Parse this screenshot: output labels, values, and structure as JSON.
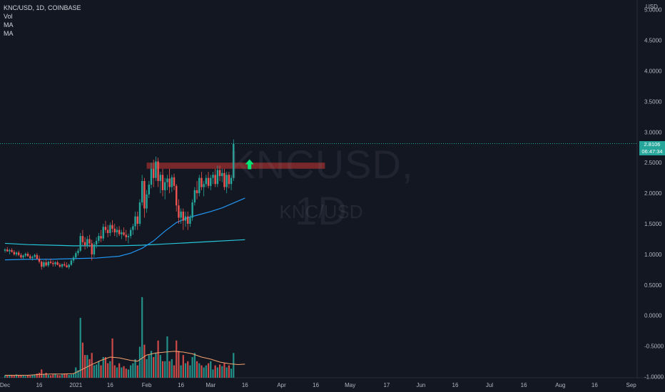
{
  "legend": {
    "symbol": "KNC/USD, 1D, COINBASE",
    "vol": "Vol",
    "ma1": "MA",
    "ma2": "MA"
  },
  "watermark": {
    "big": "KNCUSD, 1D",
    "small": "KNC/USD"
  },
  "price_tag": {
    "price": "2.8106",
    "countdown": "06:47:34"
  },
  "colors": {
    "background": "#131722",
    "up": "#26a69a",
    "down": "#ef5350",
    "ma_fast": "#2196f3",
    "ma_slow": "#26c6da",
    "vol_ma": "#f5a26f",
    "zone": "#8b2c2c",
    "arrow": "#00e676"
  },
  "chart_data": {
    "type": "candlestick",
    "y_axis": {
      "unit": "USD",
      "ticks": [
        "5.0000",
        "4.5000",
        "4.0000",
        "3.5000",
        "3.0000",
        "2.5000",
        "2.0000",
        "1.5000",
        "1.0000",
        "0.5000",
        "0.0000",
        "-0.5000",
        "-1.0000"
      ],
      "range": [
        -1.0,
        5.2
      ]
    },
    "x_axis": {
      "ticks": [
        "Dec",
        "16",
        "2021",
        "16",
        "Feb",
        "16",
        "Mar",
        "16",
        "Apr",
        "16",
        "May",
        "17",
        "Jun",
        "16",
        "Jul",
        "16",
        "Aug",
        "16",
        "Sep"
      ],
      "tick_day_index": [
        0,
        15,
        31,
        46,
        62,
        77,
        90,
        105,
        121,
        136,
        151,
        167,
        182,
        197,
        212,
        227,
        243,
        258,
        274
      ]
    },
    "last_price": 2.8106,
    "resistance_zone": {
      "low": 2.4,
      "high": 2.5,
      "start_day": 62,
      "end_day": 140
    },
    "signal": {
      "type": "up-arrow",
      "day": 107,
      "price": 2.45
    },
    "ohlc": [
      [
        1.06,
        1.1,
        1.03,
        1.08
      ],
      [
        1.08,
        1.12,
        1.04,
        1.05
      ],
      [
        1.05,
        1.09,
        1.0,
        1.07
      ],
      [
        1.07,
        1.1,
        1.03,
        1.04
      ],
      [
        1.04,
        1.07,
        0.98,
        1.0
      ],
      [
        1.0,
        1.05,
        0.97,
        1.03
      ],
      [
        1.03,
        1.06,
        0.97,
        0.99
      ],
      [
        0.99,
        1.02,
        0.93,
        0.95
      ],
      [
        0.95,
        1.0,
        0.92,
        0.98
      ],
      [
        0.98,
        1.03,
        0.95,
        1.01
      ],
      [
        1.01,
        1.04,
        0.96,
        0.97
      ],
      [
        0.97,
        1.0,
        0.92,
        0.94
      ],
      [
        0.94,
        0.98,
        0.9,
        0.96
      ],
      [
        0.96,
        1.01,
        0.94,
        0.99
      ],
      [
        0.99,
        1.02,
        0.92,
        0.93
      ],
      [
        0.93,
        0.98,
        0.85,
        0.88
      ],
      [
        0.88,
        0.9,
        0.75,
        0.8
      ],
      [
        0.8,
        0.9,
        0.78,
        0.87
      ],
      [
        0.87,
        0.92,
        0.8,
        0.82
      ],
      [
        0.82,
        0.9,
        0.79,
        0.88
      ],
      [
        0.88,
        0.93,
        0.84,
        0.86
      ],
      [
        0.86,
        0.9,
        0.8,
        0.84
      ],
      [
        0.84,
        0.89,
        0.8,
        0.87
      ],
      [
        0.87,
        0.9,
        0.82,
        0.83
      ],
      [
        0.83,
        0.86,
        0.78,
        0.8
      ],
      [
        0.8,
        0.85,
        0.77,
        0.84
      ],
      [
        0.84,
        0.88,
        0.8,
        0.82
      ],
      [
        0.82,
        0.87,
        0.78,
        0.79
      ],
      [
        0.79,
        0.85,
        0.76,
        0.83
      ],
      [
        0.83,
        0.92,
        0.81,
        0.9
      ],
      [
        0.9,
        0.98,
        0.86,
        0.95
      ],
      [
        0.95,
        1.05,
        0.92,
        1.02
      ],
      [
        1.02,
        1.1,
        0.98,
        1.06
      ],
      [
        1.06,
        1.35,
        1.04,
        1.3
      ],
      [
        1.3,
        1.4,
        1.15,
        1.2
      ],
      [
        1.2,
        1.28,
        1.08,
        1.15
      ],
      [
        1.15,
        1.3,
        1.1,
        1.25
      ],
      [
        1.25,
        1.32,
        1.12,
        1.18
      ],
      [
        1.18,
        1.24,
        0.9,
        1.0
      ],
      [
        1.0,
        1.2,
        0.96,
        1.16
      ],
      [
        1.16,
        1.28,
        1.1,
        1.22
      ],
      [
        1.22,
        1.35,
        1.18,
        1.3
      ],
      [
        1.3,
        1.4,
        1.2,
        1.26
      ],
      [
        1.26,
        1.5,
        1.22,
        1.45
      ],
      [
        1.45,
        1.55,
        1.35,
        1.4
      ],
      [
        1.4,
        1.48,
        1.28,
        1.35
      ],
      [
        1.35,
        1.52,
        1.3,
        1.48
      ],
      [
        1.48,
        1.56,
        1.36,
        1.42
      ],
      [
        1.42,
        1.5,
        1.3,
        1.36
      ],
      [
        1.36,
        1.45,
        1.28,
        1.4
      ],
      [
        1.4,
        1.46,
        1.3,
        1.33
      ],
      [
        1.33,
        1.4,
        1.25,
        1.36
      ],
      [
        1.36,
        1.44,
        1.3,
        1.32
      ],
      [
        1.32,
        1.4,
        1.22,
        1.28
      ],
      [
        1.28,
        1.34,
        1.18,
        1.3
      ],
      [
        1.3,
        1.44,
        1.26,
        1.4
      ],
      [
        1.4,
        1.5,
        1.32,
        1.46
      ],
      [
        1.46,
        1.7,
        1.4,
        1.62
      ],
      [
        1.62,
        1.7,
        1.4,
        1.5
      ],
      [
        1.5,
        1.9,
        1.46,
        1.85
      ],
      [
        1.85,
        2.3,
        1.8,
        2.2
      ],
      [
        2.2,
        2.25,
        1.6,
        1.75
      ],
      [
        1.75,
        2.05,
        1.68,
        1.98
      ],
      [
        1.98,
        2.2,
        1.92,
        2.14
      ],
      [
        2.14,
        2.5,
        2.08,
        2.4
      ],
      [
        2.4,
        2.55,
        2.1,
        2.25
      ],
      [
        2.25,
        2.6,
        2.2,
        2.52
      ],
      [
        2.52,
        2.58,
        2.1,
        2.2
      ],
      [
        2.2,
        2.35,
        2.0,
        2.3
      ],
      [
        2.3,
        2.4,
        1.95,
        2.05
      ],
      [
        2.05,
        2.25,
        1.9,
        2.18
      ],
      [
        2.18,
        2.3,
        2.05,
        2.24
      ],
      [
        2.24,
        2.4,
        2.0,
        2.1
      ],
      [
        2.1,
        2.3,
        2.02,
        2.26
      ],
      [
        2.26,
        2.32,
        2.05,
        2.12
      ],
      [
        2.12,
        2.15,
        1.7,
        1.8
      ],
      [
        1.8,
        1.9,
        1.5,
        1.6
      ],
      [
        1.6,
        1.75,
        1.5,
        1.7
      ],
      [
        1.7,
        1.75,
        1.4,
        1.55
      ],
      [
        1.55,
        1.7,
        1.45,
        1.62
      ],
      [
        1.62,
        1.7,
        1.4,
        1.5
      ],
      [
        1.5,
        1.65,
        1.45,
        1.6
      ],
      [
        1.6,
        1.9,
        1.55,
        1.85
      ],
      [
        1.85,
        2.1,
        1.8,
        2.05
      ],
      [
        2.05,
        2.2,
        1.9,
        2.0
      ],
      [
        2.0,
        2.3,
        1.95,
        2.25
      ],
      [
        2.25,
        2.35,
        2.05,
        2.1
      ],
      [
        2.1,
        2.2,
        1.95,
        2.15
      ],
      [
        2.15,
        2.3,
        2.1,
        2.25
      ],
      [
        2.25,
        2.35,
        2.08,
        2.12
      ],
      [
        2.12,
        2.3,
        2.05,
        2.25
      ],
      [
        2.25,
        2.35,
        2.15,
        2.3
      ],
      [
        2.3,
        2.4,
        2.1,
        2.15
      ],
      [
        2.15,
        2.45,
        2.1,
        2.38
      ],
      [
        2.38,
        2.45,
        2.2,
        2.28
      ],
      [
        2.28,
        2.4,
        2.18,
        2.33
      ],
      [
        2.33,
        2.4,
        2.05,
        2.1
      ],
      [
        2.1,
        2.35,
        2.0,
        2.3
      ],
      [
        2.3,
        2.35,
        2.08,
        2.15
      ],
      [
        2.15,
        2.3,
        2.05,
        2.25
      ],
      [
        2.25,
        2.88,
        2.2,
        2.81
      ]
    ],
    "volume": [
      0.06,
      0.05,
      0.07,
      0.06,
      0.05,
      0.08,
      0.06,
      0.07,
      0.05,
      0.04,
      0.06,
      0.05,
      0.07,
      0.08,
      0.1,
      0.12,
      0.2,
      0.09,
      0.12,
      0.07,
      0.06,
      0.08,
      0.1,
      0.07,
      0.06,
      0.08,
      0.1,
      0.09,
      0.07,
      0.08,
      0.1,
      0.25,
      0.18,
      1.45,
      0.85,
      0.55,
      0.55,
      0.45,
      0.6,
      0.3,
      0.32,
      0.4,
      0.3,
      0.5,
      0.5,
      0.35,
      0.4,
      0.95,
      0.3,
      0.25,
      0.35,
      0.25,
      0.28,
      0.22,
      0.2,
      0.3,
      0.35,
      0.45,
      0.3,
      0.75,
      1.95,
      0.8,
      0.45,
      0.55,
      0.65,
      0.5,
      0.6,
      0.9,
      0.55,
      0.4,
      0.4,
      1.0,
      0.4,
      0.45,
      0.3,
      0.9,
      0.65,
      0.3,
      0.55,
      0.35,
      0.4,
      0.3,
      0.5,
      0.6,
      0.4,
      0.35,
      0.3,
      0.25,
      0.3,
      0.35,
      0.4,
      0.2,
      0.3,
      0.25,
      0.32,
      0.28,
      0.35,
      0.25,
      0.3,
      0.22,
      0.6
    ],
    "ma_fast": [
      [
        0,
        0.91
      ],
      [
        10,
        0.92
      ],
      [
        20,
        0.92
      ],
      [
        30,
        0.93
      ],
      [
        40,
        0.94
      ],
      [
        50,
        0.97
      ],
      [
        55,
        1.02
      ],
      [
        60,
        1.1
      ],
      [
        65,
        1.22
      ],
      [
        70,
        1.38
      ],
      [
        75,
        1.52
      ],
      [
        80,
        1.6
      ],
      [
        85,
        1.65
      ],
      [
        90,
        1.7
      ],
      [
        95,
        1.76
      ],
      [
        100,
        1.84
      ],
      [
        105,
        1.92
      ]
    ],
    "ma_slow": [
      [
        0,
        1.18
      ],
      [
        10,
        1.16
      ],
      [
        20,
        1.15
      ],
      [
        30,
        1.14
      ],
      [
        40,
        1.14
      ],
      [
        50,
        1.14
      ],
      [
        60,
        1.15
      ],
      [
        70,
        1.17
      ],
      [
        80,
        1.19
      ],
      [
        90,
        1.21
      ],
      [
        100,
        1.23
      ],
      [
        105,
        1.24
      ]
    ],
    "vol_ma": [
      [
        0,
        0.06
      ],
      [
        10,
        0.06
      ],
      [
        15,
        0.08
      ],
      [
        20,
        0.09
      ],
      [
        25,
        0.09
      ],
      [
        30,
        0.1
      ],
      [
        33,
        0.18
      ],
      [
        38,
        0.32
      ],
      [
        42,
        0.42
      ],
      [
        46,
        0.5
      ],
      [
        50,
        0.48
      ],
      [
        55,
        0.42
      ],
      [
        58,
        0.4
      ],
      [
        62,
        0.55
      ],
      [
        66,
        0.6
      ],
      [
        70,
        0.62
      ],
      [
        74,
        0.64
      ],
      [
        78,
        0.62
      ],
      [
        82,
        0.58
      ],
      [
        86,
        0.5
      ],
      [
        90,
        0.45
      ],
      [
        94,
        0.38
      ],
      [
        98,
        0.34
      ],
      [
        102,
        0.32
      ],
      [
        105,
        0.33
      ]
    ]
  }
}
